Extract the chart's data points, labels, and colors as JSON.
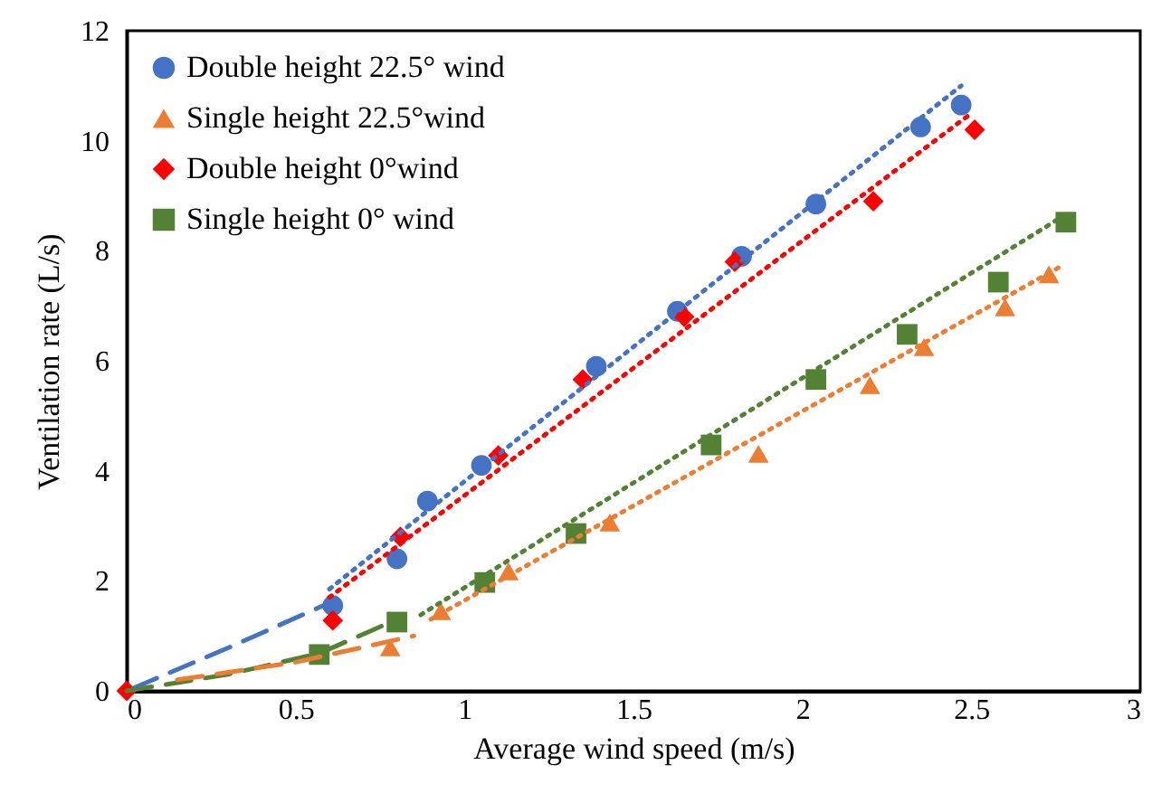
{
  "chart_data": {
    "type": "scatter",
    "xlabel": "Average wind speed (m/s)",
    "ylabel": "Ventilation rate (L/s)",
    "xlim": [
      0,
      3
    ],
    "ylim": [
      0,
      12
    ],
    "xticks": [
      0,
      0.5,
      1,
      1.5,
      2,
      2.5,
      3
    ],
    "yticks": [
      0,
      2,
      4,
      6,
      8,
      10,
      12
    ],
    "grid": false,
    "legend": "top left",
    "series": [
      {
        "name": "Double height 22.5° wind",
        "color": "#4472c4",
        "marker": "circle",
        "x": [
          0.61,
          0.8,
          0.89,
          1.05,
          1.39,
          1.63,
          1.82,
          2.04,
          2.35,
          2.47
        ],
        "values": [
          1.55,
          2.4,
          3.45,
          4.1,
          5.9,
          6.9,
          7.9,
          8.85,
          10.25,
          10.65
        ]
      },
      {
        "name": "Single height 22.5°wind",
        "color": "#ed7d31",
        "marker": "triangle",
        "x": [
          0.78,
          0.93,
          1.13,
          1.43,
          1.87,
          2.2,
          2.36,
          2.6,
          2.73
        ],
        "values": [
          0.79,
          1.45,
          2.17,
          3.06,
          4.31,
          5.56,
          6.25,
          6.97,
          7.57
        ]
      },
      {
        "name": "Double height 0°wind",
        "color": "#ff0000",
        "marker": "diamond",
        "x": [
          0,
          0.61,
          0.81,
          1.1,
          1.35,
          1.65,
          1.8,
          2.21,
          2.51
        ],
        "values": [
          0,
          1.28,
          2.8,
          4.28,
          5.66,
          6.8,
          7.8,
          8.9,
          10.2
        ]
      },
      {
        "name": "Single height 0° wind",
        "color": "#548235",
        "marker": "square",
        "x": [
          0.57,
          0.8,
          1.06,
          1.33,
          1.73,
          2.04,
          2.31,
          2.58,
          2.78
        ],
        "values": [
          0.66,
          1.25,
          1.97,
          2.86,
          4.47,
          5.66,
          6.48,
          7.43,
          8.52
        ]
      },
      {
        "type": "line",
        "color": "#4472c4",
        "line_style": "dashed",
        "x": [
          0.02,
          0.3,
          0.6
        ],
        "values": [
          0.05,
          0.78,
          1.6
        ]
      },
      {
        "type": "line",
        "color": "#4472c4",
        "line_style": "dotted",
        "x": [
          0.6,
          2.47
        ],
        "values": [
          1.85,
          11.0
        ]
      },
      {
        "type": "line",
        "color": "#ff0000",
        "line_style": "dotted",
        "x": [
          0.6,
          2.5
        ],
        "values": [
          1.7,
          10.5
        ]
      },
      {
        "type": "line",
        "color": "#548235",
        "line_style": "dashed",
        "x": [
          0,
          0.3,
          0.57,
          0.8
        ],
        "values": [
          0,
          0.3,
          0.68,
          1.3
        ]
      },
      {
        "type": "line",
        "color": "#548235",
        "line_style": "dotted",
        "x": [
          0.87,
          2.79
        ],
        "values": [
          1.38,
          8.7
        ]
      },
      {
        "type": "line",
        "color": "#ed7d31",
        "line_style": "dashed",
        "x": [
          0.15,
          0.5,
          0.85
        ],
        "values": [
          0.2,
          0.52,
          1.0
        ]
      },
      {
        "type": "line",
        "color": "#ed7d31",
        "line_style": "dotted",
        "x": [
          0.9,
          2.76
        ],
        "values": [
          1.3,
          7.7
        ]
      }
    ]
  }
}
